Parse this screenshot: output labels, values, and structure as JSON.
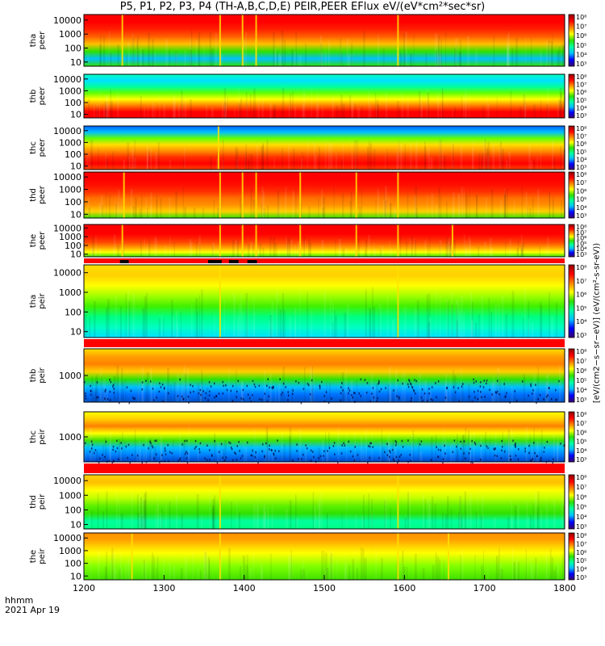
{
  "title": "P5, P1, P2, P3, P4 (TH-A,B,C,D,E) PEIR,PEER EFlux eV/(eV*cm²*sec*sr)",
  "colorbar_units": "[eV/(cm2−s−sr−eV)] (eV/(cm²-s-sr-eV))",
  "time_axis_label": "hhmm",
  "date_label": "2021 Apr 19",
  "chart_data": {
    "type": "heatmap",
    "x_ticks": [
      1200,
      1300,
      1400,
      1500,
      1600,
      1700,
      1800
    ],
    "xlim": [
      1200,
      1800
    ],
    "y_scale": "log",
    "ylim": [
      5,
      25000
    ],
    "panels": [
      {
        "ylabel": "tha peer",
        "y_ticks": [
          "10000",
          "1000",
          "100",
          "10"
        ],
        "cbar_ticks": [
          "10⁸",
          "10⁷",
          "10⁶",
          "10⁵",
          "10⁴",
          "10³"
        ],
        "spikes": [
          1248,
          1370,
          1398,
          1415,
          1592
        ],
        "bar_below": [
          [
            1245,
            1256
          ],
          [
            1355,
            1372
          ],
          [
            1381,
            1393
          ],
          [
            1404,
            1416
          ]
        ]
      },
      {
        "ylabel": "thb peer",
        "y_ticks": [
          "10000",
          "1000",
          "100",
          "10"
        ],
        "cbar_ticks": [
          "10⁸",
          "10⁷",
          "10⁶",
          "10⁵",
          "10⁴",
          "10³"
        ],
        "spikes": []
      },
      {
        "ylabel": "thc peer",
        "y_ticks": [
          "10000",
          "1000",
          "100",
          "10"
        ],
        "cbar_ticks": [
          "10⁸",
          "10⁷",
          "10⁶",
          "10⁵",
          "10⁴",
          "10³"
        ],
        "spikes": [
          1368
        ]
      },
      {
        "ylabel": "thd peer",
        "y_ticks": [
          "10000",
          "1000",
          "100",
          "10"
        ],
        "cbar_ticks": [
          "10⁸",
          "10⁷",
          "10⁶",
          "10⁵",
          "10⁴",
          "10³"
        ],
        "spikes": [
          1250,
          1370,
          1398,
          1415,
          1470,
          1540,
          1592
        ]
      },
      {
        "ylabel": "the peer",
        "y_ticks": [
          "10000",
          "1000",
          "100",
          "10"
        ],
        "cbar_ticks": [
          "10⁸",
          "10⁷",
          "10⁶",
          "10⁵",
          "10⁴",
          "10³"
        ],
        "spikes": [
          1248,
          1370,
          1398,
          1415,
          1470,
          1540,
          1592,
          1660
        ]
      },
      {
        "ylabel": "tha peir",
        "y_ticks": [
          "10000",
          "1000",
          "100",
          "10"
        ],
        "cbar_ticks": [
          "10⁸",
          "10⁷",
          "10⁶",
          "10⁵",
          "10⁴",
          "10³"
        ],
        "spikes": [
          1370,
          1592
        ]
      },
      {
        "ylabel": "thb peir",
        "y_ticks": [
          "1000"
        ],
        "cbar_ticks": [
          "10⁸",
          "10⁷",
          "10⁶",
          "10⁵",
          "10⁴",
          "10³"
        ],
        "spikes": []
      },
      {
        "ylabel": "thc peir",
        "y_ticks": [
          "1000"
        ],
        "cbar_ticks": [
          "10⁸",
          "10⁷",
          "10⁶",
          "10⁵",
          "10⁴",
          "10³"
        ],
        "spikes": []
      },
      {
        "ylabel": "thd peir",
        "y_ticks": [
          "10000",
          "1000",
          "100",
          "10"
        ],
        "cbar_ticks": [
          "10⁸",
          "10⁷",
          "10⁶",
          "10⁵",
          "10⁴",
          "10³"
        ],
        "spikes": [
          1370,
          1592
        ]
      },
      {
        "ylabel": "the peir",
        "y_ticks": [
          "10000",
          "1000",
          "100",
          "10"
        ],
        "cbar_ticks": [
          "10⁸",
          "10⁷",
          "10⁶",
          "10⁵",
          "10⁴",
          "10³"
        ],
        "spikes": [
          1260,
          1370,
          1592,
          1655
        ]
      }
    ],
    "colorscale": [
      "#3b006b",
      "#0000ff",
      "#00c0ff",
      "#00ffa0",
      "#30e000",
      "#ffff00",
      "#ff8000",
      "#ff0000",
      "#900000"
    ]
  }
}
